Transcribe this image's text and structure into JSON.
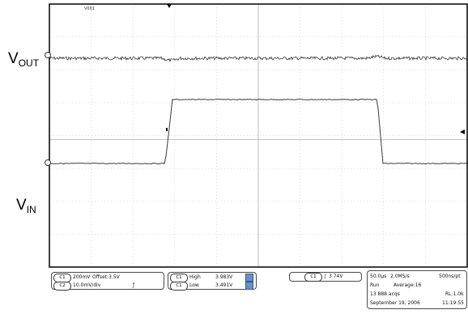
{
  "trace_labels": {
    "vout": {
      "main": "V",
      "sub": "OUT"
    },
    "vin": {
      "main": "V",
      "sub": "IN"
    }
  },
  "scope_header": "V001",
  "readouts": {
    "ch_scale_label": "C1",
    "ch_scale": "200mV",
    "ch_offset": "Offset:3.5V",
    "ch2_label": "C2",
    "ch2_scale": "10.0mV/div",
    "meas1_ch": "C1",
    "meas1_name": "High",
    "meas1_value": "3.983V",
    "meas2_ch": "C1",
    "meas2_name": "Low",
    "meas2_value": "3.491V",
    "trigger_ch": "C1",
    "trigger_level": "3.74V",
    "timebase": "50.0µs",
    "sample_rate": "2.0MS/s",
    "resolution": "500ns/pt",
    "run_state": "Run",
    "average": "Average:16",
    "acqs": "13 888 acqs",
    "rl": "RL:1.0k",
    "date": "September 19, 2006",
    "time": "11:19:55"
  },
  "colors": {
    "grid": "#d0d0d0",
    "trace": "#3a3a3a",
    "frame": "#000000"
  }
}
